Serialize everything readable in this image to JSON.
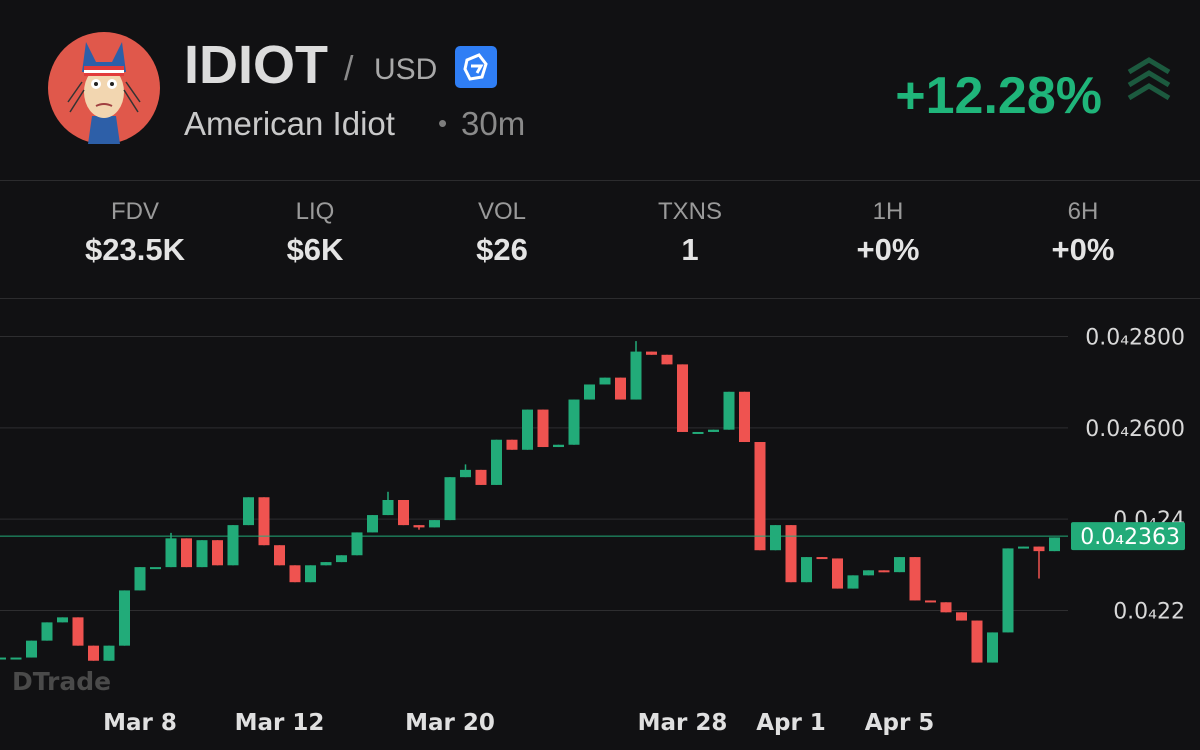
{
  "header": {
    "symbol": "IDIOT",
    "separator": "/",
    "quote": "USD",
    "name": "American Idiot",
    "dot": "•",
    "interval": "30m",
    "change": "+12.28%"
  },
  "stats": [
    {
      "label": "FDV",
      "value": "$23.5K"
    },
    {
      "label": "LIQ",
      "value": "$6K"
    },
    {
      "label": "VOL",
      "value": "$26"
    },
    {
      "label": "TXNS",
      "value": "1"
    },
    {
      "label": "1H",
      "value": "+0%"
    },
    {
      "label": "6H",
      "value": "+0%"
    }
  ],
  "chart_data": {
    "type": "candlestick",
    "watermark": "DTrade",
    "up_color": "#22ab79",
    "down_color": "#ef5350",
    "categories": [
      null,
      null,
      null,
      null,
      null,
      null,
      null,
      null,
      null,
      "Mar 8",
      null,
      null,
      null,
      null,
      null,
      null,
      null,
      null,
      "Mar 12",
      null,
      null,
      null,
      null,
      null,
      null,
      null,
      null,
      null,
      null,
      "Mar 20",
      null,
      null,
      null,
      null,
      null,
      null,
      null,
      null,
      null,
      null,
      null,
      null,
      null,
      null,
      "Mar 28",
      null,
      null,
      null,
      null,
      null,
      null,
      "Apr 1",
      null,
      null,
      null,
      null,
      null,
      null,
      "Apr 5",
      null,
      null,
      null,
      null,
      null,
      null,
      null,
      null,
      null,
      null
    ],
    "open": [
      2.097e-05,
      2.097e-05,
      2.097e-05,
      2.134e-05,
      2.174e-05,
      2.185e-05,
      2.123e-05,
      2.09e-05,
      2.123e-05,
      2.244e-05,
      2.295e-05,
      2.295e-05,
      2.358e-05,
      2.295e-05,
      2.354e-05,
      2.299e-05,
      2.387e-05,
      2.448e-05,
      2.343e-05,
      2.299e-05,
      2.262e-05,
      2.299e-05,
      2.306e-05,
      2.321e-05,
      2.371e-05,
      2.409e-05,
      2.442e-05,
      2.387e-05,
      2.382e-05,
      2.398e-05,
      2.492e-05,
      2.508e-05,
      2.475e-05,
      2.574e-05,
      2.552e-05,
      2.64e-05,
      2.558e-05,
      2.563e-05,
      2.662e-05,
      2.695e-05,
      2.71e-05,
      2.662e-05,
      2.767e-05,
      2.76e-05,
      2.739e-05,
      2.591e-05,
      2.591e-05,
      2.596e-05,
      2.679e-05,
      2.569e-05,
      2.332e-05,
      2.387e-05,
      2.262e-05,
      2.317e-05,
      2.314e-05,
      2.248e-05,
      2.277e-05,
      2.288e-05,
      2.284e-05,
      2.317e-05,
      2.222e-05,
      2.218e-05,
      2.196e-05,
      2.178e-05,
      2.086e-05,
      2.152e-05,
      2.336e-05,
      2.34e-05,
      2.33e-05
    ],
    "high": [
      2.097e-05,
      2.097e-05,
      2.134e-05,
      2.174e-05,
      2.185e-05,
      2.185e-05,
      2.123e-05,
      2.123e-05,
      2.244e-05,
      2.295e-05,
      2.295e-05,
      2.37e-05,
      2.358e-05,
      2.354e-05,
      2.354e-05,
      2.387e-05,
      2.448e-05,
      2.448e-05,
      2.343e-05,
      2.299e-05,
      2.299e-05,
      2.306e-05,
      2.321e-05,
      2.371e-05,
      2.409e-05,
      2.46e-05,
      2.442e-05,
      2.387e-05,
      2.398e-05,
      2.492e-05,
      2.52e-05,
      2.508e-05,
      2.574e-05,
      2.574e-05,
      2.64e-05,
      2.64e-05,
      2.563e-05,
      2.662e-05,
      2.695e-05,
      2.71e-05,
      2.71e-05,
      2.79e-05,
      2.767e-05,
      2.76e-05,
      2.739e-05,
      2.591e-05,
      2.596e-05,
      2.679e-05,
      2.679e-05,
      2.569e-05,
      2.387e-05,
      2.387e-05,
      2.317e-05,
      2.317e-05,
      2.314e-05,
      2.277e-05,
      2.288e-05,
      2.288e-05,
      2.317e-05,
      2.317e-05,
      2.222e-05,
      2.218e-05,
      2.196e-05,
      2.178e-05,
      2.152e-05,
      2.336e-05,
      2.34e-05,
      2.34e-05,
      2.36e-05
    ],
    "low": [
      2.097e-05,
      2.097e-05,
      2.097e-05,
      2.134e-05,
      2.174e-05,
      2.123e-05,
      2.09e-05,
      2.09e-05,
      2.123e-05,
      2.244e-05,
      2.295e-05,
      2.295e-05,
      2.295e-05,
      2.295e-05,
      2.299e-05,
      2.299e-05,
      2.387e-05,
      2.343e-05,
      2.299e-05,
      2.262e-05,
      2.262e-05,
      2.299e-05,
      2.306e-05,
      2.321e-05,
      2.371e-05,
      2.409e-05,
      2.387e-05,
      2.377e-05,
      2.382e-05,
      2.398e-05,
      2.492e-05,
      2.475e-05,
      2.475e-05,
      2.552e-05,
      2.552e-05,
      2.558e-05,
      2.558e-05,
      2.563e-05,
      2.662e-05,
      2.695e-05,
      2.662e-05,
      2.662e-05,
      2.76e-05,
      2.739e-05,
      2.591e-05,
      2.591e-05,
      2.591e-05,
      2.596e-05,
      2.569e-05,
      2.332e-05,
      2.332e-05,
      2.262e-05,
      2.262e-05,
      2.314e-05,
      2.248e-05,
      2.248e-05,
      2.277e-05,
      2.284e-05,
      2.284e-05,
      2.222e-05,
      2.218e-05,
      2.196e-05,
      2.178e-05,
      2.086e-05,
      2.086e-05,
      2.152e-05,
      2.336e-05,
      2.27e-05,
      2.33e-05
    ],
    "close": [
      2.097e-05,
      2.097e-05,
      2.134e-05,
      2.174e-05,
      2.185e-05,
      2.123e-05,
      2.09e-05,
      2.123e-05,
      2.244e-05,
      2.295e-05,
      2.295e-05,
      2.358e-05,
      2.295e-05,
      2.354e-05,
      2.299e-05,
      2.387e-05,
      2.448e-05,
      2.343e-05,
      2.299e-05,
      2.262e-05,
      2.299e-05,
      2.306e-05,
      2.321e-05,
      2.371e-05,
      2.409e-05,
      2.442e-05,
      2.387e-05,
      2.382e-05,
      2.398e-05,
      2.492e-05,
      2.508e-05,
      2.475e-05,
      2.574e-05,
      2.552e-05,
      2.64e-05,
      2.558e-05,
      2.563e-05,
      2.662e-05,
      2.695e-05,
      2.71e-05,
      2.662e-05,
      2.767e-05,
      2.76e-05,
      2.739e-05,
      2.591e-05,
      2.591e-05,
      2.596e-05,
      2.679e-05,
      2.569e-05,
      2.332e-05,
      2.387e-05,
      2.262e-05,
      2.317e-05,
      2.314e-05,
      2.248e-05,
      2.277e-05,
      2.288e-05,
      2.284e-05,
      2.317e-05,
      2.222e-05,
      2.218e-05,
      2.196e-05,
      2.178e-05,
      2.086e-05,
      2.152e-05,
      2.336e-05,
      2.34e-05,
      2.33e-05,
      2.36e-05
    ],
    "ylim": [
      2.004e-05,
      2.88e-05
    ],
    "yticks": [
      {
        "value": 2.8e-05,
        "label": "0.0₄2800"
      },
      {
        "value": 2.6e-05,
        "label": "0.0₄2600"
      },
      {
        "value": 2.4e-05,
        "label": "0.0₄24"
      },
      {
        "value": 2.2e-05,
        "label": "0.0₄22"
      }
    ],
    "grid": true,
    "price_line": {
      "value": 2.363e-05,
      "label": "0.0₄2363",
      "color": "#22ab79"
    }
  }
}
